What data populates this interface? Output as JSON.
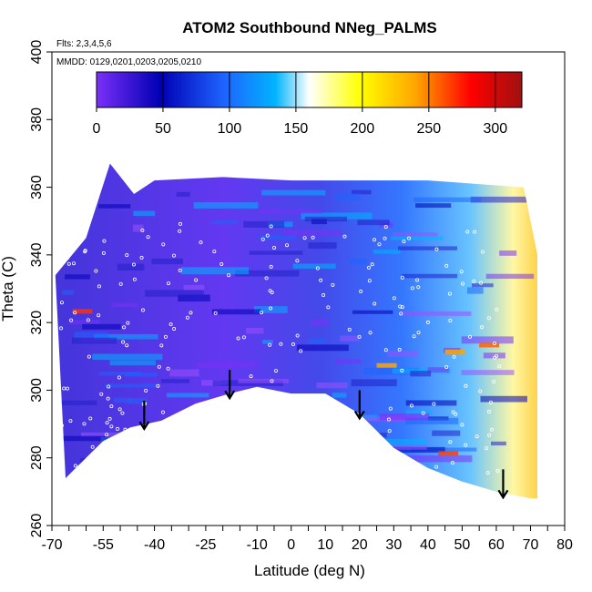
{
  "chart_data": {
    "type": "heatmap",
    "title": "ATOM2 Southbound NNeg_PALMS",
    "subtitle_flights": "Flts: 2,3,4,5,6",
    "subtitle_dates": "MMDD: 0129,0201,0203,0205,0210",
    "xlabel": "Latitude (deg N)",
    "ylabel": "Theta (C)",
    "xlim": [
      -70,
      80
    ],
    "ylim": [
      260,
      400
    ],
    "x_ticks": [
      "-70",
      "-55",
      "-40",
      "-25",
      "-10",
      "0",
      "10",
      "20",
      "30",
      "40",
      "50",
      "60",
      "70",
      "80"
    ],
    "y_ticks": [
      "260",
      "280",
      "300",
      "320",
      "340",
      "360",
      "380",
      "400"
    ],
    "colorbar": {
      "range": [
        0,
        320
      ],
      "ticks": [
        "0",
        "50",
        "100",
        "150",
        "200",
        "250",
        "300"
      ],
      "colors": [
        "#7b2ff7",
        "#0000b4",
        "#1e64ff",
        "#00b4ff",
        "#ffffff",
        "#ffff00",
        "#ffa500",
        "#ff0000",
        "#a01010"
      ]
    },
    "lower_boundary": [
      {
        "x": -66,
        "y": 274
      },
      {
        "x": -62,
        "y": 278
      },
      {
        "x": -55,
        "y": 285
      },
      {
        "x": -47,
        "y": 289
      },
      {
        "x": -38,
        "y": 291
      },
      {
        "x": -28,
        "y": 296
      },
      {
        "x": -18,
        "y": 299
      },
      {
        "x": -10,
        "y": 301
      },
      {
        "x": 0,
        "y": 299
      },
      {
        "x": 10,
        "y": 299
      },
      {
        "x": 20,
        "y": 293
      },
      {
        "x": 30,
        "y": 283
      },
      {
        "x": 40,
        "y": 277
      },
      {
        "x": 50,
        "y": 273
      },
      {
        "x": 60,
        "y": 270
      },
      {
        "x": 70,
        "y": 268
      }
    ],
    "upper_boundary": [
      {
        "x": -69,
        "y": 334
      },
      {
        "x": -60,
        "y": 345
      },
      {
        "x": -53,
        "y": 367
      },
      {
        "x": -46,
        "y": 358
      },
      {
        "x": -40,
        "y": 362
      },
      {
        "x": -20,
        "y": 363
      },
      {
        "x": 0,
        "y": 362
      },
      {
        "x": 20,
        "y": 362
      },
      {
        "x": 40,
        "y": 362
      },
      {
        "x": 68,
        "y": 360
      },
      {
        "x": 72,
        "y": 340
      },
      {
        "x": 72,
        "y": 268
      }
    ],
    "arrows_lat": [
      -43,
      -18,
      20,
      62
    ],
    "grid": false
  }
}
